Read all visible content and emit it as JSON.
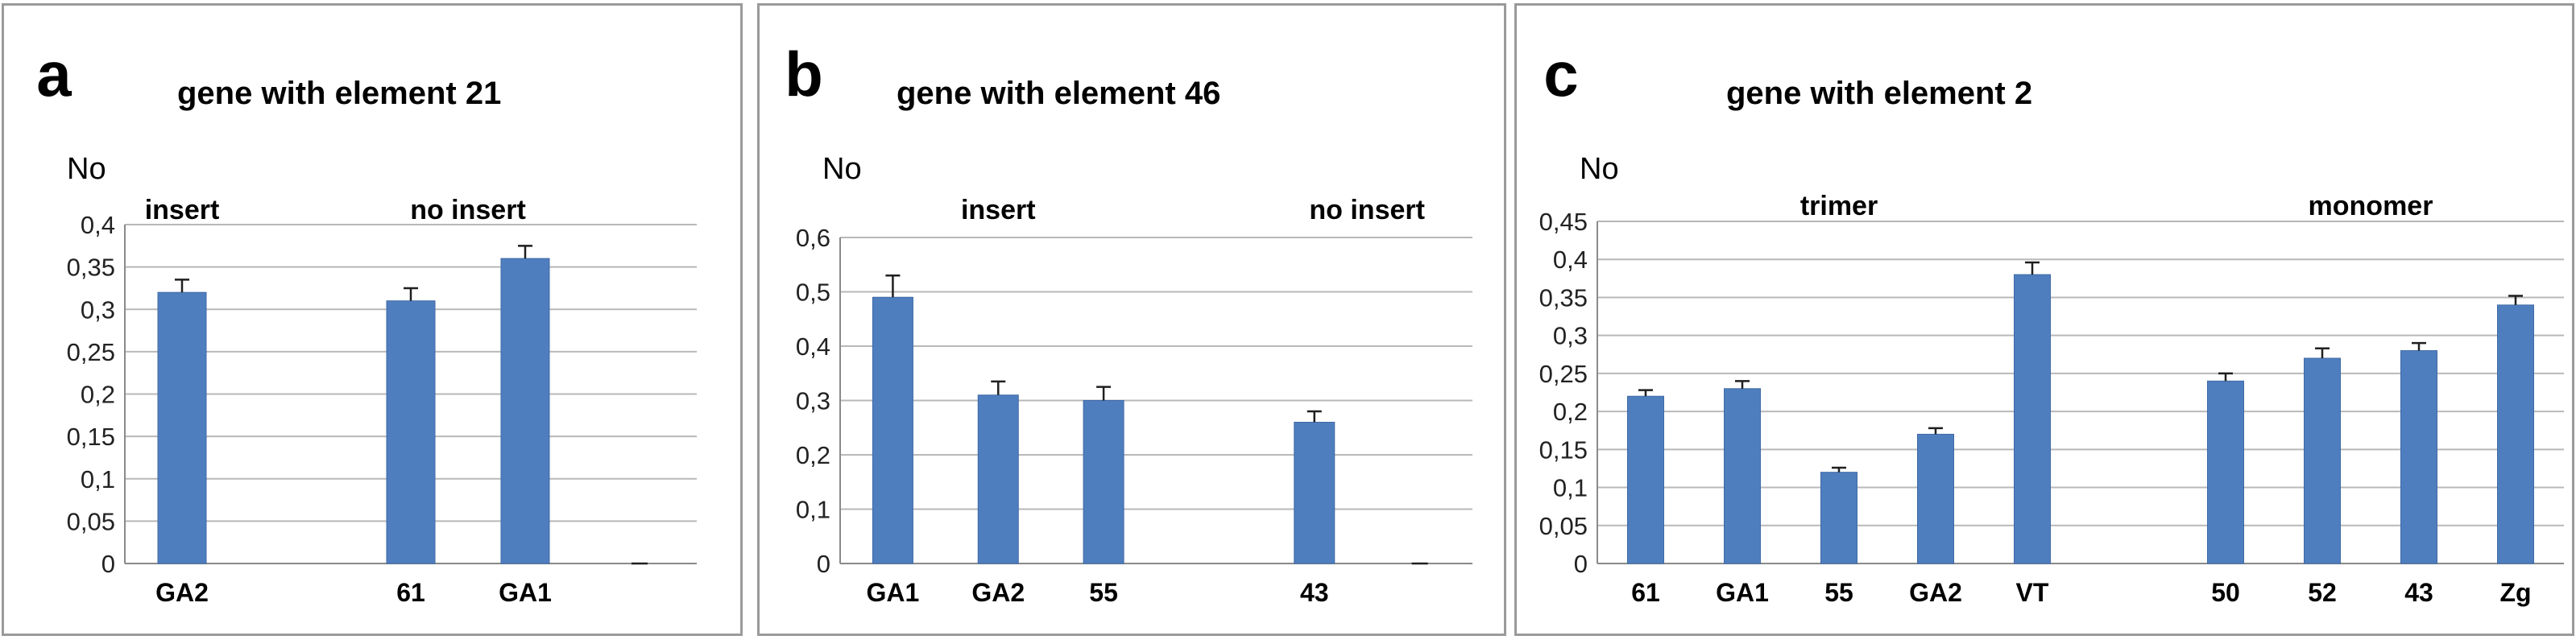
{
  "chart_data": [
    {
      "type": "bar",
      "panel_letter": "a",
      "title": "gene with element 21",
      "ylabel": "No",
      "ylim": [
        0,
        0.4
      ],
      "yticks": [
        "0",
        "0,05",
        "0,1",
        "0,15",
        "0,2",
        "0,25",
        "0,3",
        "0,35",
        "0,4"
      ],
      "categories": [
        "GA2",
        "",
        "61",
        "GA1",
        ""
      ],
      "values": [
        0.32,
        null,
        0.31,
        0.36,
        0.0
      ],
      "errors": [
        0.015,
        null,
        0.015,
        0.015,
        0.0
      ],
      "groups": [
        {
          "label": "insert",
          "from": 0,
          "to": 0
        },
        {
          "label": "no insert",
          "from": 2,
          "to": 3
        }
      ],
      "color": "#4f7ebf",
      "grid": true
    },
    {
      "type": "bar",
      "panel_letter": "b",
      "title": "gene with element 46",
      "ylabel": "No",
      "ylim": [
        0,
        0.6
      ],
      "yticks": [
        "0",
        "0,1",
        "0,2",
        "0,3",
        "0,4",
        "0,5",
        "0,6"
      ],
      "categories": [
        "GA1",
        "GA2",
        "55",
        "",
        "43",
        ""
      ],
      "values": [
        0.49,
        0.31,
        0.3,
        null,
        0.26,
        0.0
      ],
      "errors": [
        0.04,
        0.025,
        0.025,
        null,
        0.02,
        0.0
      ],
      "groups": [
        {
          "label": "insert",
          "from": 0,
          "to": 2
        },
        {
          "label": "no insert",
          "from": 4,
          "to": 5
        }
      ],
      "color": "#4f7ebf",
      "grid": true
    },
    {
      "type": "bar",
      "panel_letter": "c",
      "title": "gene with element 2",
      "ylabel": "No",
      "ylim": [
        0,
        0.45
      ],
      "yticks": [
        "0",
        "0,05",
        "0,1",
        "0,15",
        "0,2",
        "0,25",
        "0,3",
        "0,35",
        "0,4",
        "0,45"
      ],
      "categories": [
        "61",
        "GA1",
        "55",
        "GA2",
        "VT",
        "",
        "50",
        "52",
        "43",
        "Zg"
      ],
      "values": [
        0.22,
        0.23,
        0.12,
        0.17,
        0.38,
        null,
        0.24,
        0.27,
        0.28,
        0.34
      ],
      "errors": [
        0.008,
        0.01,
        0.006,
        0.008,
        0.016,
        null,
        0.01,
        0.013,
        0.01,
        0.012
      ],
      "groups": [
        {
          "label": "trimer",
          "from": 0,
          "to": 4
        },
        {
          "label": "monomer",
          "from": 6,
          "to": 9
        }
      ],
      "color": "#4f7ebf",
      "grid": true
    }
  ]
}
